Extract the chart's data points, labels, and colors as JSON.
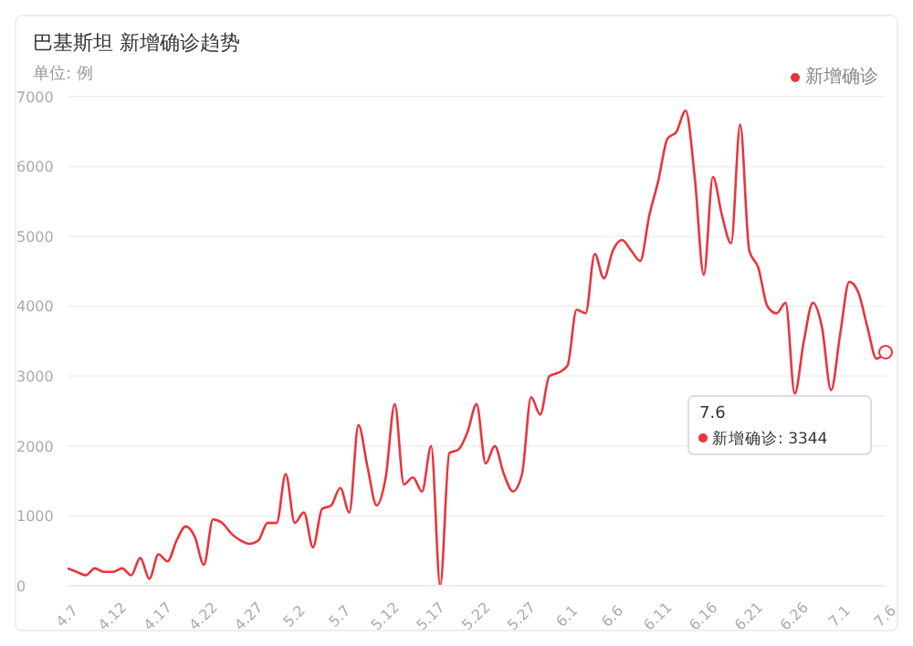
{
  "chart_data": {
    "type": "line",
    "title": "巴基斯坦 新增确诊趋势",
    "subtitle": "单位: 例",
    "categories": [
      "4.7",
      null,
      null,
      null,
      null,
      "4.12",
      null,
      null,
      null,
      null,
      "4.17",
      null,
      null,
      null,
      null,
      "4.22",
      null,
      null,
      null,
      null,
      "4.27",
      null,
      null,
      null,
      null,
      "5.2",
      null,
      null,
      null,
      null,
      "5.7",
      null,
      null,
      null,
      null,
      "5.12",
      null,
      null,
      null,
      null,
      "5.17",
      null,
      null,
      null,
      null,
      "5.22",
      null,
      null,
      null,
      null,
      "5.27",
      null,
      null,
      null,
      null,
      "6.1",
      null,
      null,
      null,
      null,
      "6.6",
      null,
      null,
      null,
      null,
      "6.11",
      null,
      null,
      null,
      null,
      "6.16",
      null,
      null,
      null,
      null,
      "6.21",
      null,
      null,
      null,
      null,
      "6.26",
      null,
      null,
      null,
      null,
      "7.1",
      null,
      null,
      null,
      null,
      "7.6"
    ],
    "series": [
      {
        "name": "新增确诊",
        "color": "#e8353d",
        "values": [
          250,
          200,
          150,
          250,
          200,
          200,
          250,
          150,
          400,
          100,
          450,
          350,
          650,
          850,
          700,
          300,
          950,
          900,
          750,
          650,
          600,
          650,
          900,
          900,
          1600,
          900,
          1050,
          550,
          1100,
          1150,
          1400,
          1050,
          2300,
          1700,
          1150,
          1550,
          2600,
          1450,
          1550,
          1350,
          2000,
          0,
          1900,
          1950,
          2200,
          2600,
          1750,
          2000,
          1600,
          1350,
          1600,
          2700,
          2450,
          3000,
          3050,
          3150,
          3950,
          3900,
          4750,
          4400,
          4800,
          4950,
          4800,
          4650,
          5300,
          5800,
          6400,
          6500,
          6800,
          5850,
          4450,
          5850,
          5300,
          4900,
          6600,
          4800,
          4550,
          4000,
          3900,
          4050,
          2750,
          3500,
          4050,
          3700,
          2800,
          3600,
          4350,
          4200,
          3700,
          3250,
          3344
        ]
      }
    ],
    "ylim": [
      0,
      7000
    ],
    "yticks": [
      0,
      1000,
      2000,
      3000,
      4000,
      5000,
      6000,
      7000
    ],
    "grid": "y",
    "legend": "top right",
    "marker": "none",
    "line_style": "solid",
    "annotations": [
      "7.6",
      "新增确诊: 3344"
    ]
  }
}
